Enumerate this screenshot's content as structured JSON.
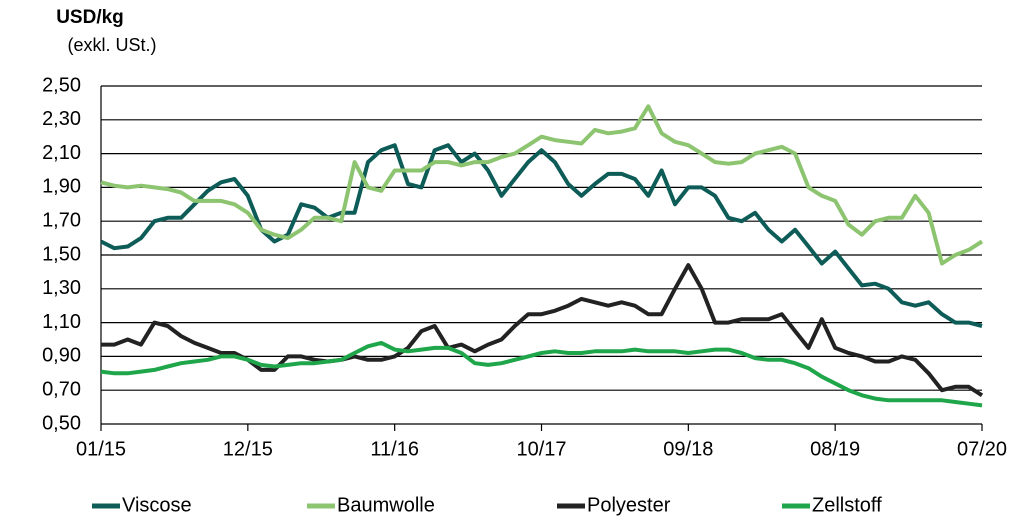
{
  "chart_data": {
    "type": "line",
    "title": "USD/kg",
    "subtitle": "(exkl. USt.)",
    "categories": [
      "01/15",
      null,
      null,
      null,
      null,
      null,
      null,
      null,
      null,
      null,
      null,
      "12/15",
      null,
      null,
      null,
      null,
      null,
      null,
      null,
      null,
      null,
      null,
      "11/16",
      null,
      null,
      null,
      null,
      null,
      null,
      null,
      null,
      null,
      null,
      "10/17",
      null,
      null,
      null,
      null,
      null,
      null,
      null,
      null,
      null,
      null,
      "09/18",
      null,
      null,
      null,
      null,
      null,
      null,
      null,
      null,
      null,
      null,
      "08/19",
      null,
      null,
      null,
      null,
      null,
      null,
      null,
      null,
      null,
      null,
      "07/20"
    ],
    "series": [
      {
        "name": "Viscose",
        "color": "#0d5c57",
        "values": [
          1.58,
          1.54,
          1.55,
          1.6,
          1.7,
          1.72,
          1.72,
          1.8,
          1.88,
          1.93,
          1.95,
          1.85,
          1.65,
          1.58,
          1.62,
          1.8,
          1.78,
          1.72,
          1.75,
          1.75,
          2.05,
          2.12,
          2.15,
          1.92,
          1.9,
          2.12,
          2.15,
          2.05,
          2.1,
          2.0,
          1.85,
          1.95,
          2.05,
          2.12,
          2.05,
          1.92,
          1.85,
          1.92,
          1.98,
          1.98,
          1.95,
          1.85,
          2.0,
          1.8,
          1.9,
          1.9,
          1.85,
          1.72,
          1.7,
          1.75,
          1.65,
          1.58,
          1.65,
          1.55,
          1.45,
          1.52,
          1.42,
          1.32,
          1.33,
          1.3,
          1.22,
          1.2,
          1.22,
          1.15,
          1.1,
          1.1,
          1.08
        ]
      },
      {
        "name": "Baumwolle",
        "color": "#8dc470",
        "values": [
          1.93,
          1.91,
          1.9,
          1.91,
          1.9,
          1.89,
          1.87,
          1.82,
          1.82,
          1.82,
          1.8,
          1.75,
          1.65,
          1.62,
          1.6,
          1.65,
          1.72,
          1.72,
          1.7,
          2.05,
          1.9,
          1.88,
          2.0,
          2.0,
          2.0,
          2.05,
          2.05,
          2.03,
          2.05,
          2.05,
          2.08,
          2.1,
          2.15,
          2.2,
          2.18,
          2.17,
          2.16,
          2.24,
          2.22,
          2.23,
          2.25,
          2.38,
          2.22,
          2.17,
          2.15,
          2.1,
          2.05,
          2.04,
          2.05,
          2.1,
          2.12,
          2.14,
          2.1,
          1.9,
          1.85,
          1.82,
          1.68,
          1.62,
          1.7,
          1.72,
          1.72,
          1.85,
          1.75,
          1.45,
          1.5,
          1.53,
          1.58
        ]
      },
      {
        "name": "Polyester",
        "color": "#222222",
        "values": [
          0.97,
          0.97,
          1.0,
          0.97,
          1.1,
          1.08,
          1.02,
          0.98,
          0.95,
          0.92,
          0.92,
          0.88,
          0.82,
          0.82,
          0.9,
          0.9,
          0.88,
          0.87,
          0.88,
          0.9,
          0.88,
          0.88,
          0.9,
          0.95,
          1.05,
          1.08,
          0.95,
          0.97,
          0.93,
          0.97,
          1.0,
          1.08,
          1.15,
          1.15,
          1.17,
          1.2,
          1.24,
          1.22,
          1.2,
          1.22,
          1.2,
          1.15,
          1.15,
          1.3,
          1.44,
          1.3,
          1.1,
          1.1,
          1.12,
          1.12,
          1.12,
          1.15,
          1.05,
          0.95,
          1.12,
          0.95,
          0.92,
          0.9,
          0.87,
          0.87,
          0.9,
          0.88,
          0.8,
          0.7,
          0.72,
          0.72,
          0.67
        ]
      },
      {
        "name": "Zellstoff",
        "color": "#1fa64a",
        "values": [
          0.81,
          0.8,
          0.8,
          0.81,
          0.82,
          0.84,
          0.86,
          0.87,
          0.88,
          0.9,
          0.9,
          0.88,
          0.85,
          0.84,
          0.85,
          0.86,
          0.86,
          0.87,
          0.88,
          0.92,
          0.96,
          0.98,
          0.94,
          0.93,
          0.94,
          0.95,
          0.95,
          0.92,
          0.86,
          0.85,
          0.86,
          0.88,
          0.9,
          0.92,
          0.93,
          0.92,
          0.92,
          0.93,
          0.93,
          0.93,
          0.94,
          0.93,
          0.93,
          0.93,
          0.92,
          0.93,
          0.94,
          0.94,
          0.92,
          0.89,
          0.88,
          0.88,
          0.86,
          0.83,
          0.78,
          0.74,
          0.7,
          0.67,
          0.65,
          0.64,
          0.64,
          0.64,
          0.64,
          0.64,
          0.63,
          0.62,
          0.61
        ]
      }
    ],
    "ylim": [
      0.5,
      2.5
    ],
    "yticks": [
      {
        "value": 0.5,
        "label": "0,50"
      },
      {
        "value": 0.7,
        "label": "0,70"
      },
      {
        "value": 0.9,
        "label": "0,90"
      },
      {
        "value": 1.1,
        "label": "1,10"
      },
      {
        "value": 1.3,
        "label": "1,30"
      },
      {
        "value": 1.5,
        "label": "1,50"
      },
      {
        "value": 1.7,
        "label": "1,70"
      },
      {
        "value": 1.9,
        "label": "1,90"
      },
      {
        "value": 2.1,
        "label": "2,10"
      },
      {
        "value": 2.3,
        "label": "2,30"
      },
      {
        "value": 2.5,
        "label": "2,50"
      }
    ],
    "grid": true,
    "legend": "bottom"
  }
}
